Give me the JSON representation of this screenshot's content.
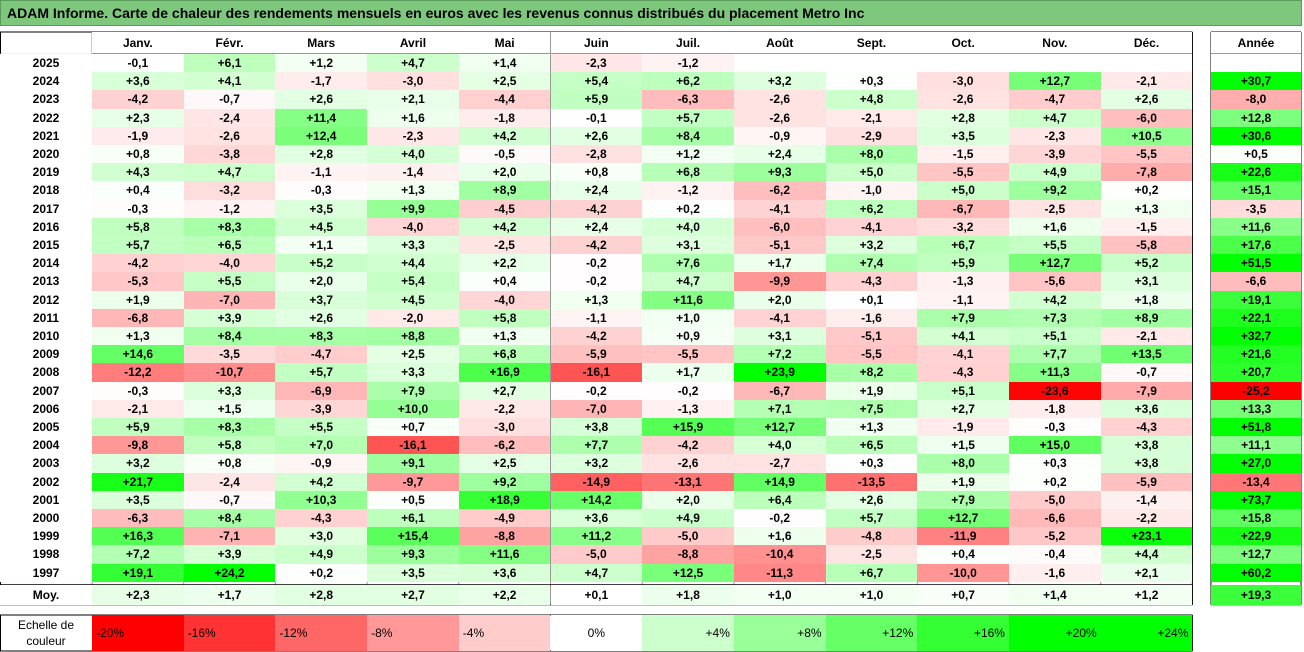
{
  "title": "ADAM Informe. Carte de chaleur des rendements mensuels en euros avec les revenus connus distribués du placement Metro Inc",
  "chart_data": {
    "type": "heatmap",
    "columns": [
      "Janv.",
      "Févr.",
      "Mars",
      "Avril",
      "Mai",
      "Juin",
      "Juil.",
      "Août",
      "Sept.",
      "Oct.",
      "Nov.",
      "Déc."
    ],
    "year_column": "Année",
    "rows": [
      {
        "year": "2025",
        "values": [
          "-0,1",
          "+6,1",
          "+1,2",
          "+4,7",
          "+1,4",
          "-2,3",
          "-1,2",
          "",
          "",
          "",
          "",
          ""
        ],
        "annual": ""
      },
      {
        "year": "2024",
        "values": [
          "+3,6",
          "+4,1",
          "-1,7",
          "-3,0",
          "+2,5",
          "+5,4",
          "+6,2",
          "+3,2",
          "+0,3",
          "-3,0",
          "+12,7",
          "-2,1"
        ],
        "annual": "+30,7"
      },
      {
        "year": "2023",
        "values": [
          "-4,2",
          "-0,7",
          "+2,6",
          "+2,1",
          "-4,4",
          "+5,9",
          "-6,3",
          "-2,6",
          "+4,8",
          "-2,6",
          "-4,7",
          "+2,6"
        ],
        "annual": "-8,0"
      },
      {
        "year": "2022",
        "values": [
          "+2,3",
          "-2,4",
          "+11,4",
          "+1,6",
          "-1,8",
          "-0,1",
          "+5,7",
          "-2,6",
          "-2,1",
          "+2,8",
          "+4,7",
          "-6,0"
        ],
        "annual": "+12,8"
      },
      {
        "year": "2021",
        "values": [
          "-1,9",
          "-2,6",
          "+12,4",
          "-2,3",
          "+4,2",
          "+2,6",
          "+8,4",
          "-0,9",
          "-2,9",
          "+3,5",
          "-2,3",
          "+10,5"
        ],
        "annual": "+30,6"
      },
      {
        "year": "2020",
        "values": [
          "+0,8",
          "-3,8",
          "+2,8",
          "+4,0",
          "-0,5",
          "-2,8",
          "+1,2",
          "+2,4",
          "+8,0",
          "-1,5",
          "-3,9",
          "-5,5"
        ],
        "annual": "+0,5"
      },
      {
        "year": "2019",
        "values": [
          "+4,3",
          "+4,7",
          "-1,1",
          "-1,4",
          "+2,0",
          "+0,8",
          "+6,8",
          "+9,3",
          "+5,0",
          "-5,5",
          "+4,9",
          "-7,8"
        ],
        "annual": "+22,6"
      },
      {
        "year": "2018",
        "values": [
          "+0,4",
          "-3,2",
          "-0,3",
          "+1,3",
          "+8,9",
          "+2,4",
          "-1,2",
          "-6,2",
          "-1,0",
          "+5,0",
          "+9,2",
          "+0,2"
        ],
        "annual": "+15,1"
      },
      {
        "year": "2017",
        "values": [
          "-0,3",
          "-1,2",
          "+3,5",
          "+9,9",
          "-4,5",
          "-4,2",
          "+0,2",
          "-4,1",
          "+6,2",
          "-6,7",
          "-2,5",
          "+1,3"
        ],
        "annual": "-3,5"
      },
      {
        "year": "2016",
        "values": [
          "+5,8",
          "+8,3",
          "+4,5",
          "-4,0",
          "+4,2",
          "+2,4",
          "+4,0",
          "-6,0",
          "-4,1",
          "-3,2",
          "+1,6",
          "-1,5"
        ],
        "annual": "+11,6"
      },
      {
        "year": "2015",
        "values": [
          "+5,7",
          "+6,5",
          "+1,1",
          "+3,3",
          "-2,5",
          "-4,2",
          "+3,1",
          "-5,1",
          "+3,2",
          "+6,7",
          "+5,5",
          "-5,8"
        ],
        "annual": "+17,6"
      },
      {
        "year": "2014",
        "values": [
          "-4,2",
          "-4,0",
          "+5,2",
          "+4,4",
          "+2,2",
          "-0,2",
          "+7,6",
          "+1,7",
          "+7,4",
          "+5,9",
          "+12,7",
          "+5,2"
        ],
        "annual": "+51,5"
      },
      {
        "year": "2013",
        "values": [
          "-5,3",
          "+5,5",
          "+2,0",
          "+5,4",
          "+0,4",
          "-0,2",
          "+4,7",
          "-9,9",
          "-4,3",
          "-1,3",
          "-5,6",
          "+3,1"
        ],
        "annual": "-6,6"
      },
      {
        "year": "2012",
        "values": [
          "+1,9",
          "-7,0",
          "+3,7",
          "+4,5",
          "-4,0",
          "+1,3",
          "+11,6",
          "+2,0",
          "+0,1",
          "-1,1",
          "+4,2",
          "+1,8"
        ],
        "annual": "+19,1"
      },
      {
        "year": "2011",
        "values": [
          "-6,8",
          "+3,9",
          "+2,6",
          "-2,0",
          "+5,8",
          "-1,1",
          "+1,0",
          "-4,1",
          "-1,6",
          "+7,9",
          "+7,3",
          "+8,9"
        ],
        "annual": "+22,1"
      },
      {
        "year": "2010",
        "values": [
          "+1,3",
          "+8,4",
          "+8,3",
          "+8,8",
          "+1,3",
          "-4,2",
          "+0,9",
          "+3,1",
          "-5,1",
          "+4,1",
          "+5,1",
          "-2,1"
        ],
        "annual": "+32,7"
      },
      {
        "year": "2009",
        "values": [
          "+14,6",
          "-3,5",
          "-4,7",
          "+2,5",
          "+6,8",
          "-5,9",
          "-5,5",
          "+7,2",
          "-5,5",
          "-4,1",
          "+7,7",
          "+13,5"
        ],
        "annual": "+21,6"
      },
      {
        "year": "2008",
        "values": [
          "-12,2",
          "-10,7",
          "+5,7",
          "+3,3",
          "+16,9",
          "-16,1",
          "+1,7",
          "+23,9",
          "+8,2",
          "-4,3",
          "+11,3",
          "-0,7"
        ],
        "annual": "+20,7"
      },
      {
        "year": "2007",
        "values": [
          "-0,3",
          "+3,3",
          "-6,9",
          "+7,9",
          "+2,7",
          "-0,2",
          "-0,2",
          "-6,7",
          "+1,9",
          "+5,1",
          "-23,6",
          "-7,9"
        ],
        "annual": "-25,2"
      },
      {
        "year": "2006",
        "values": [
          "-2,1",
          "+1,5",
          "-3,9",
          "+10,0",
          "-2,2",
          "-7,0",
          "-1,3",
          "+7,1",
          "+7,5",
          "+2,7",
          "-1,8",
          "+3,6"
        ],
        "annual": "+13,3"
      },
      {
        "year": "2005",
        "values": [
          "+5,9",
          "+8,3",
          "+5,5",
          "+0,7",
          "-3,0",
          "+3,8",
          "+15,9",
          "+12,7",
          "+1,3",
          "-1,9",
          "-0,3",
          "-4,3"
        ],
        "annual": "+51,8"
      },
      {
        "year": "2004",
        "values": [
          "-9,8",
          "+5,8",
          "+7,0",
          "-16,1",
          "-6,2",
          "+7,7",
          "-4,2",
          "+4,0",
          "+6,5",
          "+1,5",
          "+15,0",
          "+3,8"
        ],
        "annual": "+11,1"
      },
      {
        "year": "2003",
        "values": [
          "+3,2",
          "+0,8",
          "-0,9",
          "+9,1",
          "+2,5",
          "+3,2",
          "-2,6",
          "-2,7",
          "+0,3",
          "+8,0",
          "+0,3",
          "+3,8"
        ],
        "annual": "+27,0"
      },
      {
        "year": "2002",
        "values": [
          "+21,7",
          "-2,4",
          "+4,2",
          "-9,7",
          "+9,2",
          "-14,9",
          "-13,1",
          "+14,9",
          "-13,5",
          "+1,9",
          "+0,2",
          "-5,9"
        ],
        "annual": "-13,4"
      },
      {
        "year": "2001",
        "values": [
          "+3,5",
          "-0,7",
          "+10,3",
          "+0,5",
          "+18,9",
          "+14,2",
          "+2,0",
          "+6,4",
          "+2,6",
          "+7,9",
          "-5,0",
          "-1,4"
        ],
        "annual": "+73,7"
      },
      {
        "year": "2000",
        "values": [
          "-6,3",
          "+8,4",
          "-4,3",
          "+6,1",
          "-4,9",
          "+3,6",
          "+4,9",
          "-0,2",
          "+5,7",
          "+12,7",
          "-6,6",
          "-2,2"
        ],
        "annual": "+15,8"
      },
      {
        "year": "1999",
        "values": [
          "+16,3",
          "-7,1",
          "+3,0",
          "+15,4",
          "-8,8",
          "+11,2",
          "-5,0",
          "+1,6",
          "-4,8",
          "-11,9",
          "-5,2",
          "+23,1"
        ],
        "annual": "+22,9"
      },
      {
        "year": "1998",
        "values": [
          "+7,2",
          "+3,9",
          "+4,9",
          "+9,3",
          "+11,6",
          "-5,0",
          "-8,8",
          "-10,4",
          "-2,5",
          "+0,4",
          "-0,4",
          "+4,4"
        ],
        "annual": "+12,7"
      },
      {
        "year": "1997",
        "values": [
          "+19,1",
          "+24,2",
          "+0,2",
          "+3,5",
          "+3,6",
          "+4,7",
          "+12,5",
          "-11,3",
          "+6,7",
          "-10,0",
          "-1,6",
          "+2,1"
        ],
        "annual": "+60,2"
      }
    ],
    "average": {
      "label": "Moy.",
      "values": [
        "+2,3",
        "+1,7",
        "+2,8",
        "+2,7",
        "+2,2",
        "+0,1",
        "+1,8",
        "+1,0",
        "+1,0",
        "+0,7",
        "+1,4",
        "+1,2"
      ],
      "annual": "+19,3"
    },
    "legend": {
      "label": "Echelle de couleur",
      "steps": [
        "-20%",
        "-16%",
        "-12%",
        "-8%",
        "-4%",
        "0%",
        "+4%",
        "+8%",
        "+12%",
        "+16%",
        "+20%",
        "+24%"
      ]
    },
    "colors": {
      "negative_max": "#ff0000",
      "neutral": "#ffffff",
      "positive_max": "#00ff00",
      "title_bg": "#7ec87e"
    }
  }
}
